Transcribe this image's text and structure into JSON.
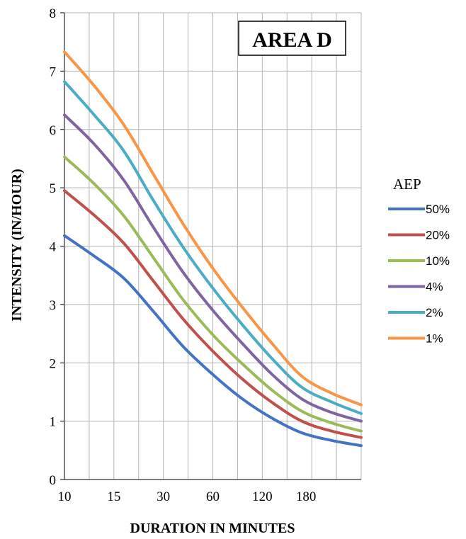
{
  "chart_data": {
    "type": "line",
    "title": "AREA D",
    "xlabel": "DURATION IN MINUTES",
    "ylabel": "INTENSITY (IN/HOUR)",
    "ylim": [
      0,
      8
    ],
    "yticks": [
      0,
      1,
      2,
      3,
      4,
      5,
      6,
      7,
      8
    ],
    "x_tick_labels": [
      "10",
      "15",
      "30",
      "60",
      "120",
      "180"
    ],
    "x_minor_gridlines": 12,
    "grid": true,
    "legend_title": "AEP",
    "legend_position": "right",
    "series": [
      {
        "name": "50%",
        "color": "#4472c4",
        "values": [
          4.18,
          3.83,
          3.45,
          2.88,
          2.28,
          1.8,
          1.38,
          1.05,
          0.8,
          0.67,
          0.58
        ]
      },
      {
        "name": "20%",
        "color": "#c0504d",
        "values": [
          4.95,
          4.53,
          4.05,
          3.4,
          2.75,
          2.2,
          1.72,
          1.32,
          1.0,
          0.83,
          0.72
        ]
      },
      {
        "name": "10%",
        "color": "#9bbb59",
        "values": [
          5.53,
          5.07,
          4.52,
          3.8,
          3.08,
          2.48,
          1.98,
          1.53,
          1.17,
          0.97,
          0.83
        ]
      },
      {
        "name": "4%",
        "color": "#8064a2",
        "values": [
          6.25,
          5.75,
          5.13,
          4.32,
          3.55,
          2.9,
          2.33,
          1.8,
          1.38,
          1.15,
          1.0
        ]
      },
      {
        "name": "2%",
        "color": "#4bacc6",
        "values": [
          6.82,
          6.25,
          5.63,
          4.78,
          3.98,
          3.28,
          2.65,
          2.07,
          1.58,
          1.33,
          1.13
        ]
      },
      {
        "name": "1%",
        "color": "#f79646",
        "values": [
          7.33,
          6.75,
          6.08,
          5.23,
          4.38,
          3.62,
          2.95,
          2.33,
          1.77,
          1.48,
          1.28
        ]
      }
    ]
  }
}
